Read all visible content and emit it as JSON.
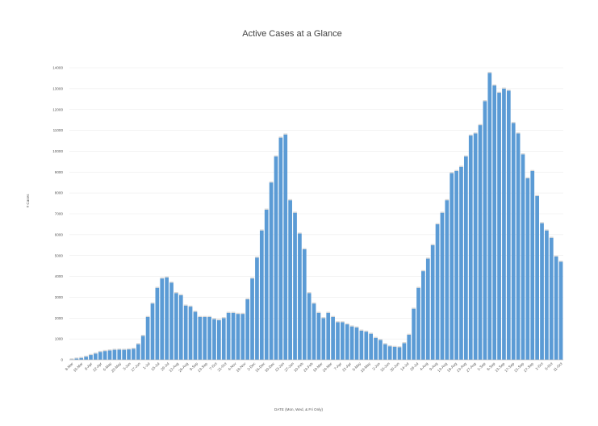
{
  "chart_data": {
    "type": "bar",
    "title": "Active Cases at a Glance",
    "xlabel": "DATE  (Mon, Wed, & Fri Only)",
    "ylabel": "# Cases",
    "ylim": [
      0,
      14000
    ],
    "yticks": [
      0,
      1000,
      2000,
      3000,
      4000,
      5000,
      6000,
      7000,
      8000,
      9000,
      10000,
      11000,
      12000,
      13000,
      14000
    ],
    "xtick_labels": [
      "8-Mar",
      "15-Mar",
      "8-Apr",
      "22-Apr",
      "6-May",
      "20-May",
      "3-Jun",
      "17-Jun",
      "1-Jul",
      "15-Jul",
      "29-Jul",
      "12-Aug",
      "26-Aug",
      "9-Sep",
      "23-Sep",
      "7-Oct",
      "21-Oct",
      "4-Nov",
      "18-Nov",
      "2-Dec",
      "16-Dec",
      "30-Dec",
      "13-Jan",
      "27-Jan",
      "10-Feb",
      "24-Feb",
      "10-Mar",
      "24-Mar",
      "7-Apr",
      "21-Apr",
      "5-May",
      "19-May",
      "2-Jun",
      "16-Jun",
      "30-Jun",
      "14-Jul",
      "28-Jul",
      "4-Aug",
      "9-Aug",
      "13-Aug",
      "18-Aug",
      "23-Aug",
      "27-Aug",
      "1-Sep",
      "8-Sep",
      "13-Sep",
      "17-Sep",
      "21-Sep",
      "27-Sep",
      "1-Oct",
      "6-Oct",
      "11-Oct"
    ],
    "values": [
      20,
      60,
      90,
      150,
      230,
      300,
      380,
      420,
      450,
      480,
      490,
      480,
      500,
      530,
      750,
      1150,
      2050,
      2700,
      3450,
      3900,
      3950,
      3700,
      3200,
      3100,
      2600,
      2550,
      2300,
      2050,
      2050,
      2050,
      1950,
      1900,
      2000,
      2250,
      2250,
      2200,
      2200,
      2900,
      3900,
      4900,
      6200,
      7200,
      8500,
      9750,
      10650,
      10800,
      7650,
      7050,
      6050,
      5300,
      3200,
      2700,
      2250,
      2000,
      2250,
      2050,
      1800,
      1800,
      1700,
      1600,
      1550,
      1400,
      1350,
      1250,
      1050,
      950,
      750,
      650,
      620,
      600,
      800,
      1200,
      2450,
      3450,
      4250,
      4850,
      5500,
      6500,
      7050,
      7650,
      8950,
      9050,
      9250,
      9750,
      10750,
      10850,
      11250,
      12400,
      13750,
      13150,
      12800,
      13000,
      12900,
      11350,
      10850,
      9850,
      8700,
      9050,
      7850,
      6550,
      6200,
      5850,
      4950,
      4700
    ]
  }
}
